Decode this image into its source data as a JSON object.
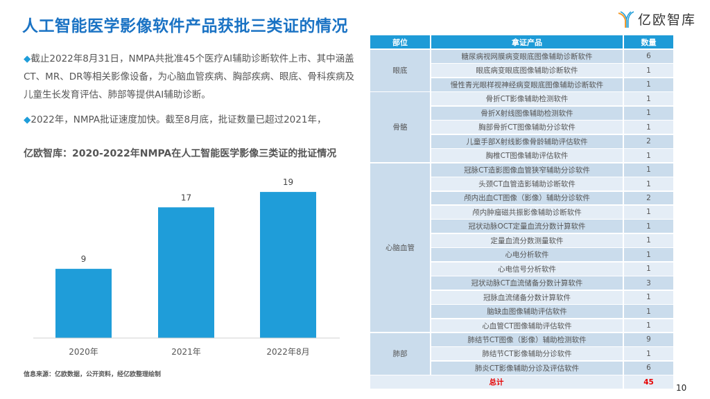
{
  "title": "人工智能医学影像软件产品获批三类证的情况",
  "logo": {
    "text": "亿欧智库"
  },
  "paragraphs": [
    "截止2022年8月31日，NMPA共批准45个医疗AI辅助诊断软件上市、其中涵盖CT、MR、DR等相关影像设备，为心脑血管疾病、胸部疾病、眼底、骨科疾病及儿童生长发育评估、肺部等提供AI辅助诊断。",
    "2022年，NMPA批证速度加快。截至8月底，批证数量已超过2021年，"
  ],
  "bullet_glyph": "◆",
  "chart_title": "亿欧智库：2020-2022年NMPA在人工智能医学影像三类证的批证情况",
  "chart_data": {
    "type": "bar",
    "categories": [
      "2020年",
      "2021年",
      "2022年8月"
    ],
    "values": [
      9,
      17,
      19
    ],
    "title": "亿欧智库：2020-2022年NMPA在人工智能医学影像三类证的批证情况",
    "ylim": [
      0,
      20
    ],
    "grid": false,
    "color": "#1f9dd9"
  },
  "source": "信息来源：亿欧数据，公开资料，经亿欧整理绘制",
  "table": {
    "headers": [
      "部位",
      "拿证产品",
      "数量"
    ],
    "groups": [
      {
        "part": "眼底",
        "rows": [
          [
            "糖尿病视网膜病变眼底图像辅助诊断软件",
            "6"
          ],
          [
            "眼底病变眼底图像辅助诊断软件",
            "1"
          ],
          [
            "慢性青光眼样视神经病变眼底图像辅助诊断软件",
            "1"
          ]
        ]
      },
      {
        "part": "骨骼",
        "rows": [
          [
            "骨折CT影像辅助检测软件",
            "1"
          ],
          [
            "骨折X射线图像辅助检测软件",
            "1"
          ],
          [
            "胸部骨折CT图像辅助分诊软件",
            "1"
          ],
          [
            "儿童手部X射线影像骨龄辅助评估软件",
            "2"
          ],
          [
            "胸椎CT图像辅助评估软件",
            "1"
          ]
        ]
      },
      {
        "part": "心脑血管",
        "rows": [
          [
            "冠脉CT造影图像血管狭窄辅助分诊软件",
            "1"
          ],
          [
            "头颈CT血管造影辅助诊断软件",
            "1"
          ],
          [
            "颅内出血CT图像（影像）辅助分诊软件",
            "2"
          ],
          [
            "颅内肿瘤磁共振影像辅助诊断软件",
            "1"
          ],
          [
            "冠状动脉OCT定量血流分数计算软件",
            "1"
          ],
          [
            "定量血流分数测量软件",
            "1"
          ],
          [
            "心电分析软件",
            "1"
          ],
          [
            "心电信号分析软件",
            "1"
          ],
          [
            "冠状动脉CT血流储备分数计算软件",
            "3"
          ],
          [
            "冠脉血流储备分数计算软件",
            "1"
          ],
          [
            "脑缺血图像辅助评估软件",
            "1"
          ],
          [
            "心血管CT图像辅助评估软件",
            "1"
          ]
        ]
      },
      {
        "part": "肺部",
        "rows": [
          [
            "肺结节CT图像（影像）辅助检测软件",
            "9"
          ],
          [
            "肺结节CT影像辅助分诊软件",
            "1"
          ],
          [
            "肺炎CT影像辅助分诊及评估软件",
            "6"
          ]
        ]
      }
    ],
    "total_label": "总计",
    "total_value": "45"
  },
  "page_number": "10",
  "colors": {
    "header": "#1e9bd7",
    "row_dark": "#cadcec",
    "row_light": "#e4edf6",
    "total_red": "#e60000"
  }
}
